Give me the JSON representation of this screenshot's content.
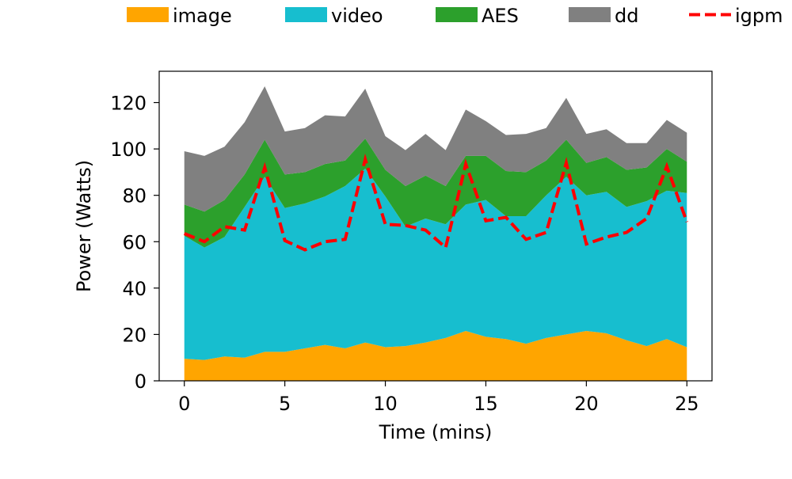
{
  "chart_data": {
    "type": "area",
    "stacked": true,
    "xlabel": "Time (mins)",
    "ylabel": "Power (Watts)",
    "xlim": [
      -1.25,
      26.25
    ],
    "ylim": [
      0,
      133.5
    ],
    "xticks": [
      0,
      5,
      10,
      15,
      20,
      25
    ],
    "yticks": [
      0,
      20,
      40,
      60,
      80,
      100,
      120
    ],
    "grid": false,
    "legend_position": "top",
    "x": [
      0,
      1,
      2,
      3,
      4,
      5,
      6,
      7,
      8,
      9,
      10,
      11,
      12,
      13,
      14,
      15,
      16,
      17,
      18,
      19,
      20,
      21,
      22,
      23,
      24,
      25
    ],
    "series": [
      {
        "name": "image",
        "color": "#ffa500",
        "values": [
          9.5,
          9,
          10.5,
          10,
          12.5,
          12.5,
          14,
          15.5,
          14,
          16.5,
          14.5,
          15,
          16.5,
          18.5,
          21.5,
          19,
          18,
          16,
          18.5,
          20,
          21.5,
          20.5,
          17.5,
          15,
          18,
          14.5
        ]
      },
      {
        "name": "video",
        "color": "#17becf",
        "values": [
          53,
          48.5,
          51.5,
          65,
          75.5,
          62,
          62.5,
          64,
          70,
          75,
          65,
          51.5,
          53.5,
          49,
          54.5,
          59,
          53,
          55,
          61.5,
          68,
          58.5,
          61,
          57.5,
          62.5,
          64,
          66.5
        ]
      },
      {
        "name": "AES",
        "color": "#2ca02c",
        "values": [
          13.5,
          15.5,
          16,
          14,
          16,
          14.5,
          13.5,
          14,
          11,
          13,
          11.5,
          17.5,
          18.5,
          16.5,
          21,
          19,
          19.5,
          19,
          15,
          16,
          14,
          15,
          16,
          14.5,
          18,
          13.5
        ]
      },
      {
        "name": "dd",
        "color": "#808080",
        "values": [
          23,
          24,
          23,
          22.5,
          23,
          18.5,
          19,
          21,
          19,
          21.5,
          14.5,
          15.5,
          18,
          15.5,
          20,
          15,
          15.5,
          16.5,
          14,
          18,
          12.5,
          12,
          11.5,
          10.5,
          12.5,
          12.5
        ]
      }
    ],
    "line": {
      "name": "igpm",
      "color": "#ff0000",
      "values": [
        63.5,
        60,
        66.5,
        65,
        92,
        60.5,
        56.5,
        60,
        61,
        95.5,
        67.5,
        67,
        65,
        57.5,
        93.5,
        69,
        70.5,
        61,
        64,
        94,
        59,
        62,
        64,
        70,
        92.5,
        68.5
      ]
    }
  }
}
